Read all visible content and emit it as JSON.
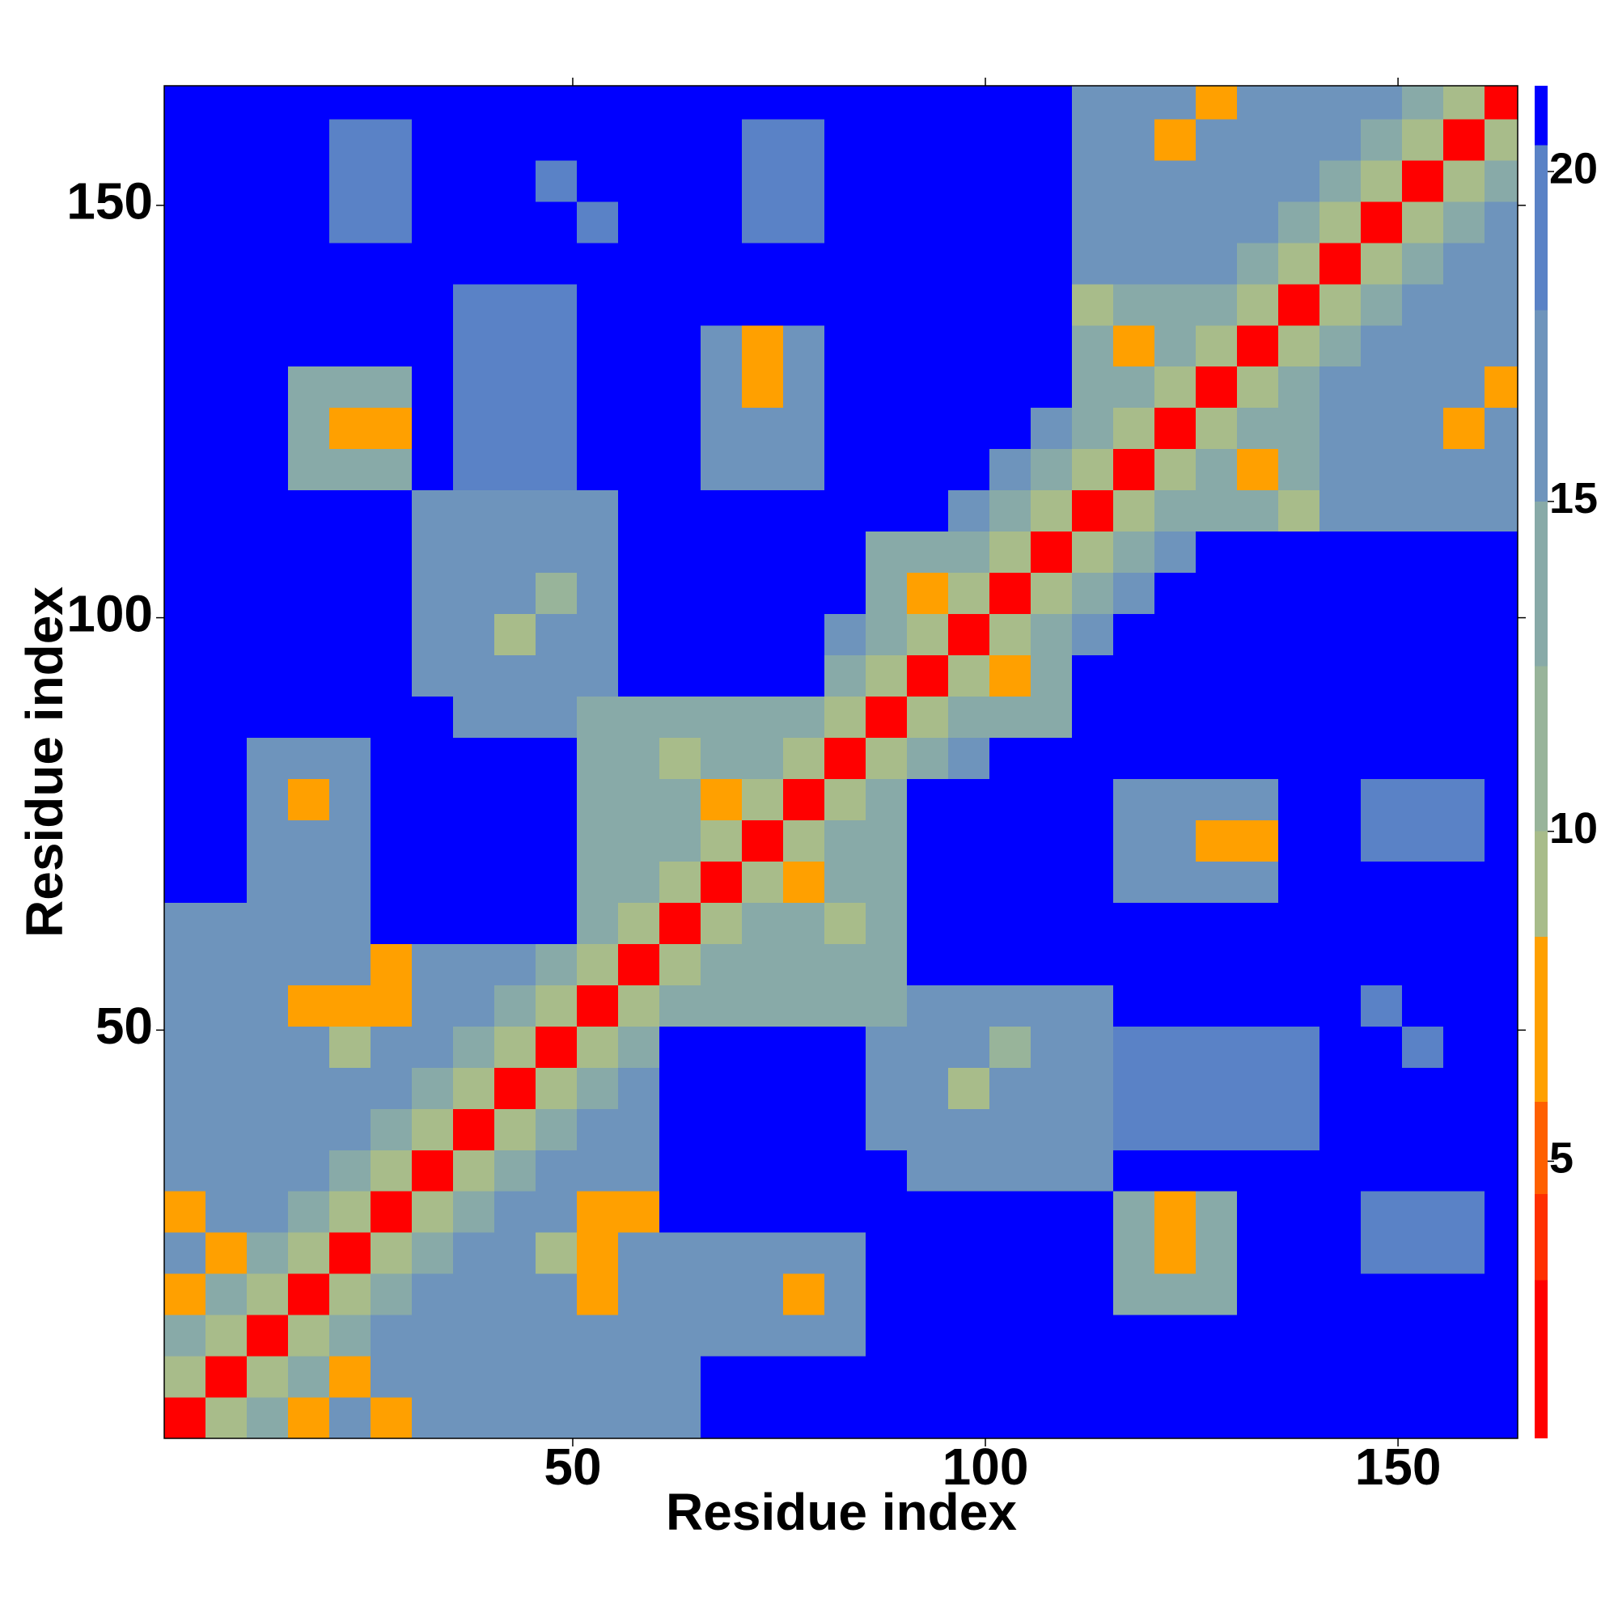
{
  "chart_data": {
    "type": "heatmap",
    "xlabel": "Residue index",
    "ylabel": "Residue index",
    "x": [
      3,
      8,
      13,
      18,
      23,
      28,
      33,
      38,
      43,
      48,
      53,
      58,
      63,
      68,
      73,
      78,
      83,
      88,
      93,
      98,
      103,
      108,
      113,
      118,
      123,
      128,
      133,
      138,
      143,
      148,
      153,
      158,
      163
    ],
    "y": [
      3,
      8,
      13,
      18,
      23,
      28,
      33,
      38,
      43,
      48,
      53,
      58,
      63,
      68,
      73,
      78,
      83,
      88,
      93,
      98,
      103,
      108,
      113,
      118,
      123,
      128,
      133,
      138,
      143,
      148,
      153,
      158,
      163
    ],
    "xlim": [
      0.5,
      164.5
    ],
    "ylim": [
      0.5,
      164.5
    ],
    "xticks": [
      50,
      100,
      150
    ],
    "yticks": [
      50,
      100,
      150
    ],
    "colorbar": {
      "zlim": [
        0.8,
        21.3
      ],
      "zticks": [
        5,
        10,
        15,
        20
      ],
      "bounds": [
        0.8,
        3.2,
        4.5,
        5.9,
        8.4,
        10,
        12.5,
        15,
        17.9,
        20.4,
        21.3
      ],
      "colors": [
        "#ff0000",
        "#ff3000",
        "#ff6000",
        "#ffa000",
        "#a8bc8a",
        "#98b49a",
        "#88aaa8",
        "#6e94bc",
        "#5a82c6",
        "#0000ff"
      ]
    },
    "z": [
      [
        3,
        9,
        14,
        8,
        16,
        8,
        16,
        16,
        16,
        16,
        16,
        16,
        17,
        21,
        21,
        21,
        21,
        21,
        21,
        21,
        21,
        21,
        21,
        21,
        21,
        21,
        21,
        21,
        21,
        21,
        21,
        21,
        21
      ],
      [
        9,
        3,
        9,
        14,
        8,
        16,
        16,
        16,
        16,
        16,
        16,
        16,
        17,
        21,
        21,
        21,
        21,
        21,
        21,
        21,
        21,
        21,
        21,
        21,
        21,
        21,
        21,
        21,
        21,
        21,
        21,
        21,
        21
      ],
      [
        14,
        9,
        3,
        9,
        14,
        16,
        16,
        16,
        16,
        16,
        16,
        16,
        17,
        17,
        17,
        17,
        17,
        21,
        21,
        21,
        21,
        21,
        21,
        21,
        21,
        21,
        21,
        21,
        21,
        21,
        21,
        21,
        21
      ],
      [
        8,
        14,
        9,
        3,
        9,
        14,
        16,
        16,
        16,
        16,
        8,
        16,
        17,
        17,
        17,
        8,
        17,
        21,
        21,
        21,
        21,
        21,
        21,
        14,
        14,
        14,
        21,
        21,
        21,
        21,
        21,
        21,
        21
      ],
      [
        16,
        8,
        14,
        9,
        3,
        9,
        14,
        16,
        16,
        9,
        8,
        16,
        17,
        17,
        17,
        17,
        17,
        21,
        21,
        21,
        21,
        21,
        21,
        14,
        7,
        14,
        21,
        21,
        21,
        20,
        20,
        20,
        21
      ],
      [
        8,
        16,
        16,
        14,
        9,
        3,
        9,
        14,
        16,
        16,
        8,
        8,
        21,
        21,
        21,
        21,
        21,
        21,
        21,
        21,
        21,
        21,
        21,
        14,
        8,
        14,
        21,
        21,
        21,
        20,
        20,
        20,
        21
      ],
      [
        16,
        16,
        16,
        16,
        14,
        9,
        3,
        9,
        14,
        16,
        16,
        16,
        21,
        21,
        21,
        21,
        21,
        21,
        17,
        17,
        17,
        17,
        17,
        21,
        21,
        21,
        21,
        21,
        21,
        21,
        21,
        21,
        21
      ],
      [
        16,
        16,
        16,
        16,
        16,
        14,
        9,
        3,
        9,
        14,
        16,
        16,
        21,
        21,
        21,
        21,
        21,
        15,
        15,
        15,
        15,
        17,
        17,
        19,
        19,
        19,
        19,
        19,
        21,
        21,
        21,
        21,
        21
      ],
      [
        16,
        16,
        16,
        16,
        16,
        16,
        14,
        9,
        3,
        9,
        14,
        16,
        21,
        21,
        21,
        21,
        21,
        15,
        15,
        9,
        15,
        17,
        17,
        19,
        19,
        19,
        19,
        19,
        21,
        21,
        21,
        21,
        21
      ],
      [
        16,
        16,
        16,
        16,
        9,
        16,
        16,
        14,
        9,
        3,
        9,
        14,
        21,
        21,
        21,
        21,
        21,
        15,
        15,
        15,
        10,
        17,
        17,
        19,
        19,
        19,
        19,
        19,
        21,
        21,
        20,
        21,
        21
      ],
      [
        16,
        16,
        16,
        8,
        8,
        8,
        16,
        16,
        14,
        9,
        3,
        9,
        14,
        14,
        14,
        14,
        14,
        14,
        17,
        17,
        17,
        17,
        17,
        21,
        21,
        21,
        21,
        21,
        21,
        20,
        21,
        21,
        21
      ],
      [
        16,
        16,
        16,
        16,
        16,
        8,
        16,
        16,
        16,
        14,
        9,
        3,
        9,
        14,
        14,
        14,
        14,
        14,
        21,
        21,
        21,
        21,
        21,
        21,
        21,
        21,
        21,
        21,
        21,
        21,
        21,
        21,
        21
      ],
      [
        17,
        17,
        17,
        17,
        17,
        21,
        21,
        21,
        21,
        21,
        14,
        9,
        3,
        9,
        14,
        14,
        9,
        14,
        21,
        21,
        21,
        21,
        21,
        21,
        21,
        21,
        21,
        21,
        21,
        21,
        21,
        21,
        21
      ],
      [
        21,
        21,
        17,
        17,
        17,
        21,
        21,
        21,
        21,
        21,
        14,
        14,
        9,
        3,
        9,
        7,
        14,
        14,
        21,
        21,
        21,
        21,
        21,
        16,
        16,
        16,
        16,
        21,
        21,
        21,
        21,
        21,
        21
      ],
      [
        21,
        21,
        17,
        17,
        17,
        21,
        21,
        21,
        21,
        21,
        14,
        14,
        14,
        9,
        3,
        9,
        14,
        14,
        21,
        21,
        21,
        21,
        21,
        16,
        16,
        8,
        8,
        21,
        21,
        19,
        19,
        19,
        21
      ],
      [
        21,
        21,
        17,
        8,
        17,
        21,
        21,
        21,
        21,
        21,
        14,
        14,
        14,
        7,
        9,
        3,
        9,
        14,
        21,
        21,
        21,
        21,
        21,
        16,
        16,
        16,
        16,
        21,
        21,
        19,
        19,
        19,
        21
      ],
      [
        21,
        21,
        17,
        17,
        17,
        21,
        21,
        21,
        21,
        21,
        14,
        14,
        9,
        14,
        14,
        9,
        3,
        9,
        14,
        17,
        21,
        21,
        21,
        21,
        21,
        21,
        21,
        21,
        21,
        21,
        21,
        21,
        21
      ],
      [
        21,
        21,
        21,
        21,
        21,
        21,
        21,
        15,
        15,
        15,
        14,
        14,
        14,
        14,
        14,
        14,
        9,
        3,
        9,
        13,
        13,
        13,
        21,
        21,
        21,
        21,
        21,
        21,
        21,
        21,
        21,
        21,
        21
      ],
      [
        21,
        21,
        21,
        21,
        21,
        21,
        17,
        15,
        15,
        15,
        17,
        21,
        21,
        21,
        21,
        21,
        14,
        9,
        3,
        9,
        8,
        13,
        21,
        21,
        21,
        21,
        21,
        21,
        21,
        21,
        21,
        21,
        21
      ],
      [
        21,
        21,
        21,
        21,
        21,
        21,
        17,
        15,
        9,
        15,
        17,
        21,
        21,
        21,
        21,
        21,
        17,
        13,
        9,
        3,
        9,
        13,
        17,
        21,
        21,
        21,
        21,
        21,
        21,
        21,
        21,
        21,
        21
      ],
      [
        21,
        21,
        21,
        21,
        21,
        21,
        17,
        15,
        15,
        10,
        17,
        21,
        21,
        21,
        21,
        21,
        21,
        13,
        8,
        9,
        3,
        9,
        14,
        17,
        21,
        21,
        21,
        21,
        21,
        21,
        21,
        21,
        21
      ],
      [
        21,
        21,
        21,
        21,
        21,
        21,
        17,
        17,
        17,
        17,
        17,
        21,
        21,
        21,
        21,
        21,
        21,
        13,
        13,
        13,
        9,
        3,
        9,
        14,
        17,
        21,
        21,
        21,
        21,
        21,
        21,
        21,
        21
      ],
      [
        21,
        21,
        21,
        21,
        21,
        21,
        17,
        17,
        17,
        17,
        17,
        21,
        21,
        21,
        21,
        21,
        21,
        21,
        21,
        17,
        14,
        9,
        3,
        9,
        14,
        14,
        14,
        9,
        17,
        17,
        17,
        17,
        17
      ],
      [
        21,
        21,
        21,
        14,
        14,
        14,
        21,
        19,
        19,
        19,
        21,
        21,
        21,
        16,
        16,
        16,
        21,
        21,
        21,
        21,
        17,
        14,
        9,
        3,
        9,
        14,
        7,
        14,
        17,
        17,
        17,
        17,
        17
      ],
      [
        21,
        21,
        21,
        14,
        7,
        8,
        21,
        19,
        19,
        19,
        21,
        21,
        21,
        16,
        16,
        16,
        21,
        21,
        21,
        21,
        21,
        17,
        14,
        9,
        3,
        9,
        14,
        14,
        17,
        17,
        17,
        8,
        17
      ],
      [
        21,
        21,
        21,
        14,
        14,
        14,
        21,
        19,
        19,
        19,
        21,
        21,
        21,
        16,
        8,
        16,
        21,
        21,
        21,
        21,
        21,
        21,
        14,
        14,
        9,
        3,
        9,
        14,
        17,
        17,
        17,
        17,
        8
      ],
      [
        21,
        21,
        21,
        21,
        21,
        21,
        21,
        19,
        19,
        19,
        21,
        21,
        21,
        16,
        8,
        16,
        21,
        21,
        21,
        21,
        21,
        21,
        14,
        7,
        14,
        9,
        3,
        9,
        14,
        17,
        17,
        17,
        17
      ],
      [
        21,
        21,
        21,
        21,
        21,
        21,
        21,
        19,
        19,
        19,
        21,
        21,
        21,
        21,
        21,
        21,
        21,
        21,
        21,
        21,
        21,
        21,
        9,
        14,
        14,
        14,
        9,
        3,
        9,
        14,
        17,
        17,
        17
      ],
      [
        21,
        21,
        21,
        21,
        21,
        21,
        21,
        21,
        21,
        21,
        21,
        21,
        21,
        21,
        21,
        21,
        21,
        21,
        21,
        21,
        21,
        21,
        17,
        17,
        17,
        17,
        14,
        9,
        3,
        9,
        14,
        15,
        15
      ],
      [
        21,
        21,
        21,
        21,
        20,
        20,
        21,
        21,
        21,
        21,
        20,
        21,
        21,
        21,
        19,
        19,
        21,
        21,
        21,
        21,
        21,
        21,
        17,
        17,
        17,
        17,
        17,
        14,
        9,
        3,
        9,
        14,
        15
      ],
      [
        21,
        21,
        21,
        21,
        20,
        20,
        21,
        21,
        21,
        20,
        21,
        21,
        21,
        21,
        19,
        19,
        21,
        21,
        21,
        21,
        21,
        21,
        17,
        17,
        17,
        17,
        17,
        17,
        14,
        9,
        3,
        9,
        14
      ],
      [
        21,
        21,
        21,
        21,
        20,
        20,
        21,
        21,
        21,
        21,
        21,
        21,
        21,
        21,
        19,
        19,
        21,
        21,
        21,
        21,
        21,
        21,
        17,
        17,
        8,
        17,
        17,
        17,
        15,
        14,
        9,
        3,
        9
      ],
      [
        21,
        21,
        21,
        21,
        21,
        21,
        21,
        21,
        21,
        21,
        21,
        21,
        21,
        21,
        21,
        21,
        21,
        21,
        21,
        21,
        21,
        21,
        17,
        17,
        17,
        8,
        17,
        17,
        15,
        15,
        14,
        9,
        3
      ]
    ]
  }
}
